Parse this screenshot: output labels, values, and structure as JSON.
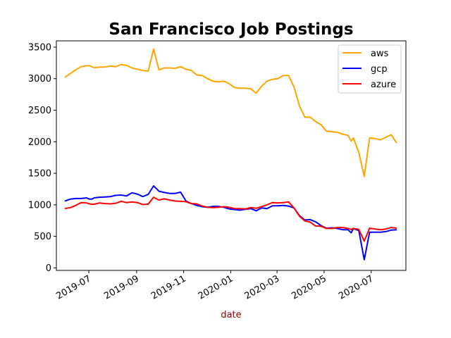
{
  "chart_data": {
    "type": "line",
    "title": "San Francisco Job Postings",
    "xlabel": "date",
    "ylabel": "",
    "ylim": [
      -40,
      3600
    ],
    "xlim": [
      "2019-05-20",
      "2020-08-15"
    ],
    "grid": false,
    "legend_position": "top-right",
    "colors": {
      "aws": "#ffa500",
      "gcp": "#0000ff",
      "azure": "#ff0000",
      "xlabel": "#8b0000"
    },
    "yticks": [
      0,
      500,
      1000,
      1500,
      2000,
      2500,
      3000,
      3500
    ],
    "xticks": [
      {
        "date": "2019-07-01",
        "label": "2019-07"
      },
      {
        "date": "2019-09-01",
        "label": "2019-09"
      },
      {
        "date": "2019-11-01",
        "label": "2019-11"
      },
      {
        "date": "2020-01-01",
        "label": "2020-01"
      },
      {
        "date": "2020-03-01",
        "label": "2020-03"
      },
      {
        "date": "2020-05-01",
        "label": "2020-05"
      },
      {
        "date": "2020-07-01",
        "label": "2020-07"
      }
    ],
    "series": [
      {
        "name": "aws",
        "points": [
          [
            "2019-05-31",
            3020
          ],
          [
            "2019-06-07",
            3080
          ],
          [
            "2019-06-14",
            3140
          ],
          [
            "2019-06-21",
            3190
          ],
          [
            "2019-06-28",
            3205
          ],
          [
            "2019-07-02",
            3205
          ],
          [
            "2019-07-05",
            3190
          ],
          [
            "2019-07-08",
            3175
          ],
          [
            "2019-07-15",
            3185
          ],
          [
            "2019-07-22",
            3185
          ],
          [
            "2019-07-29",
            3200
          ],
          [
            "2019-08-05",
            3190
          ],
          [
            "2019-08-12",
            3225
          ],
          [
            "2019-08-19",
            3210
          ],
          [
            "2019-08-26",
            3170
          ],
          [
            "2019-09-02",
            3150
          ],
          [
            "2019-09-09",
            3130
          ],
          [
            "2019-09-16",
            3120
          ],
          [
            "2019-09-23",
            3470
          ],
          [
            "2019-09-30",
            3140
          ],
          [
            "2019-10-07",
            3170
          ],
          [
            "2019-10-14",
            3170
          ],
          [
            "2019-10-21",
            3165
          ],
          [
            "2019-10-28",
            3190
          ],
          [
            "2019-11-04",
            3150
          ],
          [
            "2019-11-11",
            3130
          ],
          [
            "2019-11-18",
            3060
          ],
          [
            "2019-11-25",
            3050
          ],
          [
            "2019-12-02",
            3000
          ],
          [
            "2019-12-09",
            2960
          ],
          [
            "2019-12-16",
            2950
          ],
          [
            "2019-12-23",
            2960
          ],
          [
            "2019-12-30",
            2920
          ],
          [
            "2020-01-06",
            2860
          ],
          [
            "2020-01-13",
            2850
          ],
          [
            "2020-01-20",
            2850
          ],
          [
            "2020-01-27",
            2840
          ],
          [
            "2020-02-03",
            2770
          ],
          [
            "2020-02-10",
            2880
          ],
          [
            "2020-02-17",
            2960
          ],
          [
            "2020-02-24",
            2990
          ],
          [
            "2020-03-02",
            3000
          ],
          [
            "2020-03-09",
            3050
          ],
          [
            "2020-03-16",
            3050
          ],
          [
            "2020-03-23",
            2870
          ],
          [
            "2020-03-30",
            2570
          ],
          [
            "2020-04-06",
            2390
          ],
          [
            "2020-04-13",
            2390
          ],
          [
            "2020-04-20",
            2320
          ],
          [
            "2020-04-27",
            2270
          ],
          [
            "2020-05-04",
            2170
          ],
          [
            "2020-05-11",
            2160
          ],
          [
            "2020-05-18",
            2150
          ],
          [
            "2020-05-25",
            2120
          ],
          [
            "2020-06-01",
            2100
          ],
          [
            "2020-06-05",
            2010
          ],
          [
            "2020-06-08",
            2060
          ],
          [
            "2020-06-15",
            1830
          ],
          [
            "2020-06-22",
            1450
          ],
          [
            "2020-06-29",
            2060
          ],
          [
            "2020-07-06",
            2050
          ],
          [
            "2020-07-13",
            2030
          ],
          [
            "2020-07-20",
            2070
          ],
          [
            "2020-07-27",
            2110
          ],
          [
            "2020-08-03",
            1980
          ]
        ]
      },
      {
        "name": "gcp",
        "points": [
          [
            "2019-05-31",
            1060
          ],
          [
            "2019-06-07",
            1090
          ],
          [
            "2019-06-14",
            1100
          ],
          [
            "2019-06-21",
            1100
          ],
          [
            "2019-06-28",
            1110
          ],
          [
            "2019-07-02",
            1090
          ],
          [
            "2019-07-05",
            1090
          ],
          [
            "2019-07-08",
            1110
          ],
          [
            "2019-07-15",
            1120
          ],
          [
            "2019-07-22",
            1125
          ],
          [
            "2019-07-29",
            1130
          ],
          [
            "2019-08-05",
            1150
          ],
          [
            "2019-08-12",
            1155
          ],
          [
            "2019-08-19",
            1140
          ],
          [
            "2019-08-26",
            1190
          ],
          [
            "2019-09-02",
            1170
          ],
          [
            "2019-09-09",
            1130
          ],
          [
            "2019-09-16",
            1165
          ],
          [
            "2019-09-23",
            1300
          ],
          [
            "2019-09-30",
            1215
          ],
          [
            "2019-10-07",
            1195
          ],
          [
            "2019-10-14",
            1180
          ],
          [
            "2019-10-21",
            1180
          ],
          [
            "2019-10-28",
            1200
          ],
          [
            "2019-11-04",
            1060
          ],
          [
            "2019-11-11",
            1020
          ],
          [
            "2019-11-18",
            990
          ],
          [
            "2019-11-25",
            970
          ],
          [
            "2019-12-02",
            960
          ],
          [
            "2019-12-09",
            975
          ],
          [
            "2019-12-16",
            975
          ],
          [
            "2019-12-23",
            960
          ],
          [
            "2019-12-30",
            935
          ],
          [
            "2020-01-06",
            925
          ],
          [
            "2020-01-13",
            915
          ],
          [
            "2020-01-20",
            930
          ],
          [
            "2020-01-27",
            940
          ],
          [
            "2020-02-03",
            905
          ],
          [
            "2020-02-10",
            950
          ],
          [
            "2020-02-17",
            940
          ],
          [
            "2020-02-24",
            985
          ],
          [
            "2020-03-02",
            985
          ],
          [
            "2020-03-09",
            990
          ],
          [
            "2020-03-16",
            980
          ],
          [
            "2020-03-23",
            950
          ],
          [
            "2020-03-30",
            830
          ],
          [
            "2020-04-06",
            760
          ],
          [
            "2020-04-13",
            765
          ],
          [
            "2020-04-20",
            730
          ],
          [
            "2020-04-27",
            670
          ],
          [
            "2020-05-04",
            630
          ],
          [
            "2020-05-11",
            635
          ],
          [
            "2020-05-18",
            625
          ],
          [
            "2020-05-25",
            605
          ],
          [
            "2020-06-01",
            605
          ],
          [
            "2020-06-05",
            555
          ],
          [
            "2020-06-08",
            625
          ],
          [
            "2020-06-15",
            590
          ],
          [
            "2020-06-22",
            130
          ],
          [
            "2020-06-29",
            565
          ],
          [
            "2020-07-06",
            565
          ],
          [
            "2020-07-13",
            565
          ],
          [
            "2020-07-20",
            575
          ],
          [
            "2020-07-27",
            600
          ],
          [
            "2020-08-03",
            605
          ]
        ]
      },
      {
        "name": "azure",
        "points": [
          [
            "2019-05-31",
            940
          ],
          [
            "2019-06-07",
            955
          ],
          [
            "2019-06-14",
            990
          ],
          [
            "2019-06-21",
            1035
          ],
          [
            "2019-06-28",
            1030
          ],
          [
            "2019-07-02",
            1015
          ],
          [
            "2019-07-05",
            1010
          ],
          [
            "2019-07-08",
            1010
          ],
          [
            "2019-07-15",
            1030
          ],
          [
            "2019-07-22",
            1020
          ],
          [
            "2019-07-29",
            1015
          ],
          [
            "2019-08-05",
            1025
          ],
          [
            "2019-08-12",
            1055
          ],
          [
            "2019-08-19",
            1035
          ],
          [
            "2019-08-26",
            1045
          ],
          [
            "2019-09-02",
            1035
          ],
          [
            "2019-09-09",
            1005
          ],
          [
            "2019-09-16",
            1010
          ],
          [
            "2019-09-23",
            1120
          ],
          [
            "2019-09-30",
            1075
          ],
          [
            "2019-10-07",
            1095
          ],
          [
            "2019-10-14",
            1075
          ],
          [
            "2019-10-21",
            1060
          ],
          [
            "2019-10-28",
            1055
          ],
          [
            "2019-11-04",
            1050
          ],
          [
            "2019-11-11",
            1020
          ],
          [
            "2019-11-18",
            1015
          ],
          [
            "2019-11-25",
            980
          ],
          [
            "2019-12-02",
            960
          ],
          [
            "2019-12-09",
            955
          ],
          [
            "2019-12-16",
            960
          ],
          [
            "2019-12-23",
            970
          ],
          [
            "2019-12-30",
            960
          ],
          [
            "2020-01-06",
            940
          ],
          [
            "2020-01-13",
            940
          ],
          [
            "2020-01-20",
            935
          ],
          [
            "2020-01-27",
            955
          ],
          [
            "2020-02-03",
            945
          ],
          [
            "2020-02-10",
            970
          ],
          [
            "2020-02-17",
            1000
          ],
          [
            "2020-02-24",
            1035
          ],
          [
            "2020-03-02",
            1030
          ],
          [
            "2020-03-09",
            1035
          ],
          [
            "2020-03-16",
            1045
          ],
          [
            "2020-03-23",
            950
          ],
          [
            "2020-03-30",
            820
          ],
          [
            "2020-04-06",
            745
          ],
          [
            "2020-04-13",
            725
          ],
          [
            "2020-04-20",
            665
          ],
          [
            "2020-04-27",
            660
          ],
          [
            "2020-05-04",
            625
          ],
          [
            "2020-05-11",
            625
          ],
          [
            "2020-05-18",
            640
          ],
          [
            "2020-05-25",
            640
          ],
          [
            "2020-06-01",
            625
          ],
          [
            "2020-06-05",
            610
          ],
          [
            "2020-06-08",
            625
          ],
          [
            "2020-06-15",
            610
          ],
          [
            "2020-06-22",
            425
          ],
          [
            "2020-06-29",
            630
          ],
          [
            "2020-07-06",
            615
          ],
          [
            "2020-07-13",
            605
          ],
          [
            "2020-07-20",
            615
          ],
          [
            "2020-07-27",
            640
          ],
          [
            "2020-08-03",
            630
          ]
        ]
      }
    ]
  }
}
